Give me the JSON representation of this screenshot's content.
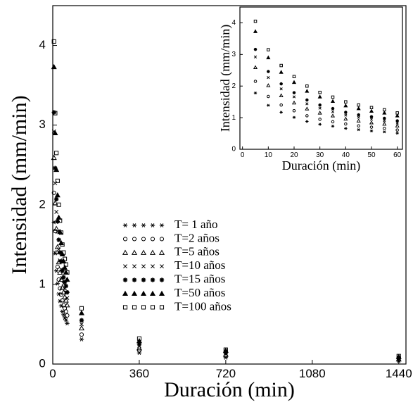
{
  "chart_data": [
    {
      "type": "scatter",
      "x_label": "Duración (min)",
      "y_label": "Intensidad (mm/min)",
      "x": [
        5,
        10,
        15,
        20,
        25,
        30,
        35,
        40,
        45,
        50,
        55,
        60,
        120,
        360,
        720,
        1440
      ],
      "xlim": [
        0,
        1470
      ],
      "ylim": [
        0,
        4.5
      ],
      "xticks": [
        0,
        360,
        720,
        1080,
        1440
      ],
      "yticks": [
        0,
        1,
        2,
        3,
        4
      ],
      "legend": "center",
      "series": [
        {
          "name": "T= 1 año",
          "marker": "asterisk",
          "color": "#000000",
          "values": [
            1.78,
            1.39,
            1.17,
            1.01,
            0.88,
            0.79,
            0.73,
            0.66,
            0.62,
            0.58,
            0.55,
            0.51,
            0.31,
            0.14,
            0.08,
            0.04
          ]
        },
        {
          "name": "T=2 años",
          "marker": "circle",
          "color": "#000000",
          "values": [
            2.15,
            1.67,
            1.4,
            1.22,
            1.06,
            0.95,
            0.87,
            0.8,
            0.74,
            0.7,
            0.66,
            0.61,
            0.37,
            0.17,
            0.1,
            0.05
          ]
        },
        {
          "name": "T=5 años",
          "marker": "triangle",
          "color": "#000000",
          "values": [
            2.59,
            2.02,
            1.7,
            1.47,
            1.28,
            1.15,
            1.06,
            0.96,
            0.9,
            0.84,
            0.8,
            0.74,
            0.45,
            0.2,
            0.12,
            0.06
          ]
        },
        {
          "name": "T=10 años",
          "marker": "cross",
          "color": "#000000",
          "values": [
            2.92,
            2.27,
            1.91,
            1.66,
            1.44,
            1.3,
            1.19,
            1.08,
            1.01,
            0.95,
            0.9,
            0.83,
            0.5,
            0.23,
            0.13,
            0.07
          ]
        },
        {
          "name": "T=15 años",
          "marker": "star",
          "color": "#000000",
          "values": [
            3.16,
            2.46,
            2.07,
            1.79,
            1.56,
            1.4,
            1.29,
            1.17,
            1.09,
            1.03,
            0.98,
            0.9,
            0.55,
            0.25,
            0.14,
            0.08
          ]
        },
        {
          "name": "T=50 años",
          "marker": "filled-triangle",
          "color": "#000000",
          "values": [
            3.73,
            2.9,
            2.44,
            2.12,
            1.84,
            1.66,
            1.52,
            1.38,
            1.29,
            1.21,
            1.15,
            1.06,
            0.64,
            0.29,
            0.17,
            0.09
          ]
        },
        {
          "name": "T=100 años",
          "marker": "square",
          "color": "#000000",
          "values": [
            4.05,
            3.15,
            2.65,
            2.3,
            2.0,
            1.8,
            1.65,
            1.5,
            1.4,
            1.32,
            1.25,
            1.15,
            0.7,
            0.32,
            0.18,
            0.1
          ]
        }
      ]
    },
    {
      "type": "scatter",
      "x_label": "Duración (min)",
      "y_label": "Intensidad (mm/min)",
      "xlim": [
        -1,
        62
      ],
      "ylim": [
        0,
        4.5
      ],
      "xticks": [
        0,
        10,
        20,
        30,
        40,
        50,
        60
      ],
      "yticks": [
        0,
        1,
        2,
        3,
        4
      ]
    }
  ]
}
